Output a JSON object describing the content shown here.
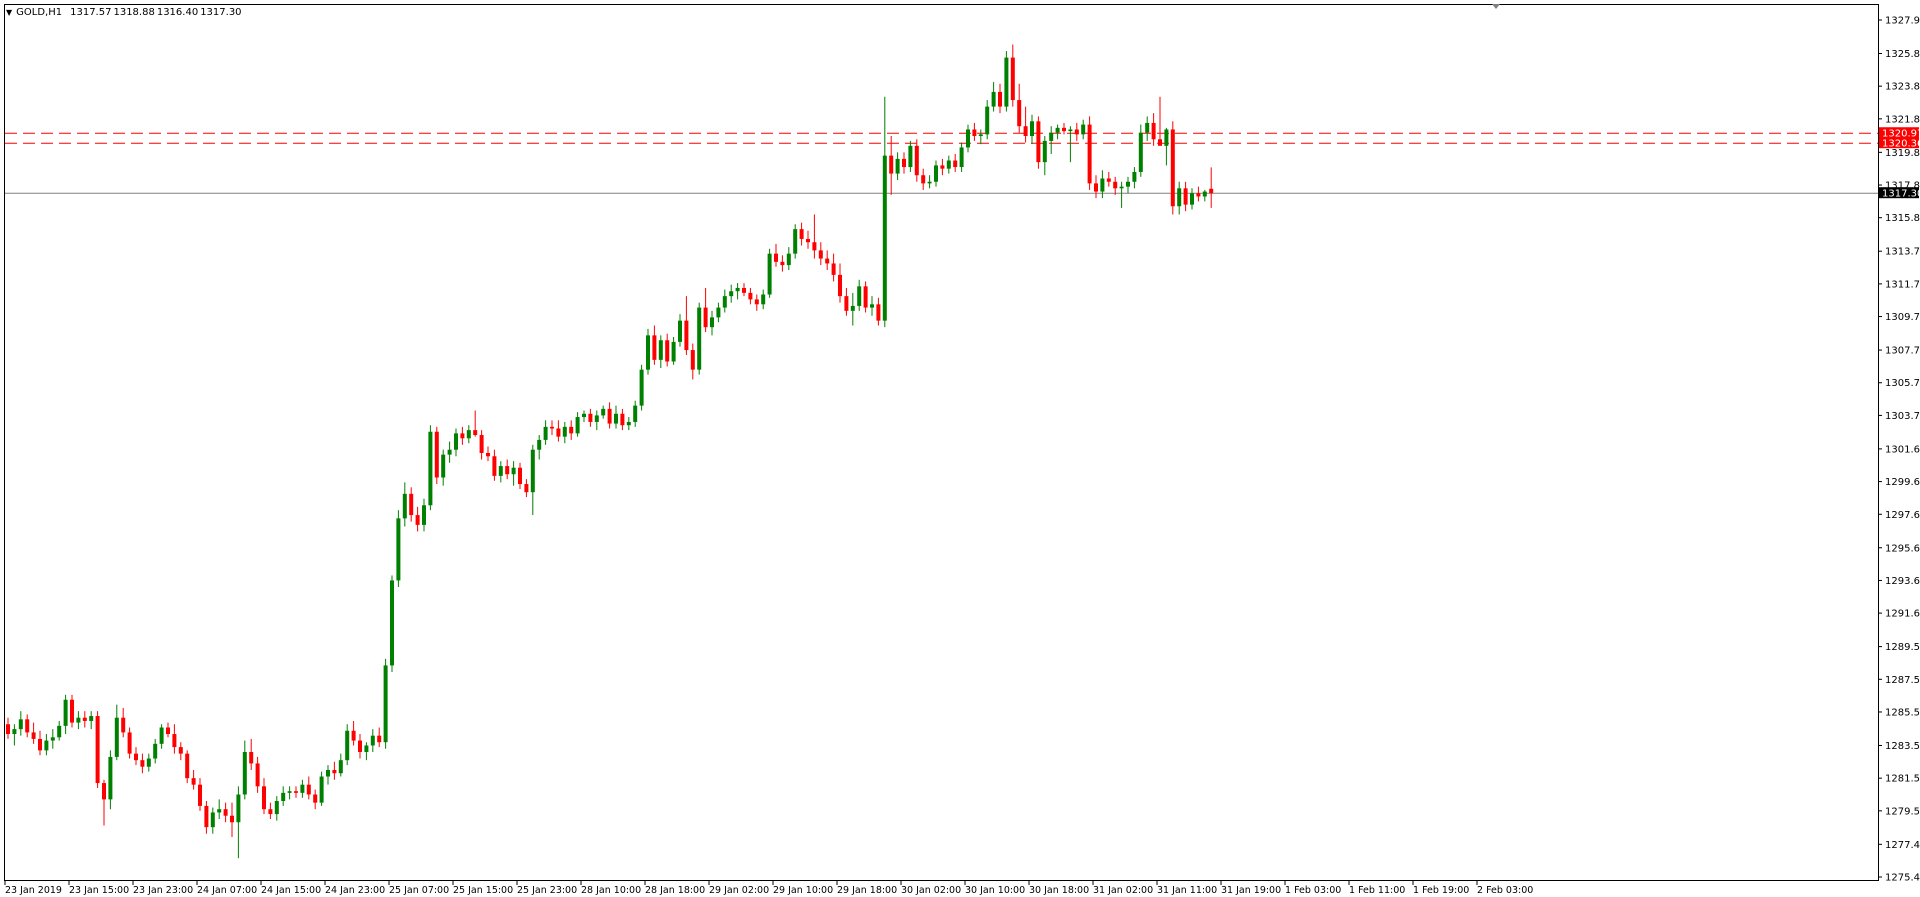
{
  "header": {
    "symbol": "GOLD,H1",
    "open": "1317.57",
    "high": "1318.88",
    "low": "1316.40",
    "close": "1317.30"
  },
  "colors": {
    "bull": "#008000",
    "bear": "#ff0000",
    "hline": "#ff0000",
    "price_line": "#808080",
    "price_tag_bg": "#000000",
    "hline_tag_bg": "#ff0000",
    "axis": "#000000"
  },
  "horizontal_lines": [
    {
      "price": 1320.97,
      "label": "1320.97"
    },
    {
      "price": 1320.36,
      "label": "1320.36"
    }
  ],
  "current_price": {
    "price": 1317.3,
    "label": "1317.30"
  },
  "chart_data": {
    "type": "candlestick",
    "ylim": [
      1275.45,
      1327.9
    ],
    "y_ticks": [
      "1327.90",
      "1325.85",
      "1323.85",
      "1321.85",
      "1319.80",
      "1317.80",
      "1315.80",
      "1313.75",
      "1311.75",
      "1309.75",
      "1307.70",
      "1305.70",
      "1303.70",
      "1301.65",
      "1299.65",
      "1297.65",
      "1295.60",
      "1293.60",
      "1291.60",
      "1289.55",
      "1287.55",
      "1285.55",
      "1283.50",
      "1281.50",
      "1279.50",
      "1277.45",
      "1275.45"
    ],
    "x_ticks": [
      "23 Jan 2019",
      "23 Jan 15:00",
      "23 Jan 23:00",
      "24 Jan 07:00",
      "24 Jan 15:00",
      "24 Jan 23:00",
      "25 Jan 07:00",
      "25 Jan 15:00",
      "25 Jan 23:00",
      "28 Jan 10:00",
      "28 Jan 18:00",
      "29 Jan 02:00",
      "29 Jan 10:00",
      "29 Jan 18:00",
      "30 Jan 02:00",
      "30 Jan 10:00",
      "30 Jan 18:00",
      "31 Jan 02:00",
      "31 Jan 11:00",
      "31 Jan 19:00",
      "1 Feb 03:00",
      "1 Feb 11:00",
      "1 Feb 19:00",
      "2 Feb 03:00"
    ],
    "ohlc": [
      [
        1284.8,
        1285.2,
        1283.9,
        1284.2
      ],
      [
        1284.2,
        1284.8,
        1283.5,
        1284.5
      ],
      [
        1284.5,
        1285.6,
        1284.1,
        1285.1
      ],
      [
        1285.1,
        1285.4,
        1284.0,
        1284.3
      ],
      [
        1284.3,
        1284.9,
        1283.6,
        1283.9
      ],
      [
        1283.9,
        1284.4,
        1282.9,
        1283.2
      ],
      [
        1283.2,
        1284.2,
        1282.9,
        1283.8
      ],
      [
        1283.8,
        1284.5,
        1283.3,
        1284.0
      ],
      [
        1284.0,
        1285.0,
        1283.8,
        1284.7
      ],
      [
        1284.7,
        1286.6,
        1284.2,
        1286.3
      ],
      [
        1286.3,
        1286.6,
        1284.6,
        1284.9
      ],
      [
        1284.9,
        1285.6,
        1284.5,
        1285.2
      ],
      [
        1285.2,
        1285.6,
        1284.6,
        1285.0
      ],
      [
        1285.0,
        1285.6,
        1284.5,
        1285.3
      ],
      [
        1285.3,
        1285.6,
        1280.9,
        1281.2
      ],
      [
        1281.2,
        1281.4,
        1278.6,
        1280.2
      ],
      [
        1280.2,
        1283.2,
        1279.6,
        1282.8
      ],
      [
        1282.8,
        1286.0,
        1282.6,
        1285.2
      ],
      [
        1285.2,
        1285.8,
        1284.0,
        1284.3
      ],
      [
        1284.3,
        1284.6,
        1282.7,
        1283.0
      ],
      [
        1283.0,
        1283.4,
        1282.3,
        1282.6
      ],
      [
        1282.6,
        1283.0,
        1281.8,
        1282.2
      ],
      [
        1282.2,
        1283.0,
        1281.9,
        1282.7
      ],
      [
        1282.7,
        1283.9,
        1282.4,
        1283.6
      ],
      [
        1283.6,
        1284.8,
        1283.3,
        1284.6
      ],
      [
        1284.6,
        1284.9,
        1284.0,
        1284.2
      ],
      [
        1284.2,
        1284.8,
        1283.0,
        1283.4
      ],
      [
        1283.4,
        1283.7,
        1282.6,
        1283.0
      ],
      [
        1283.0,
        1283.2,
        1281.2,
        1281.5
      ],
      [
        1281.5,
        1282.0,
        1280.8,
        1281.1
      ],
      [
        1281.1,
        1281.5,
        1279.5,
        1279.8
      ],
      [
        1279.8,
        1280.1,
        1278.1,
        1278.5
      ],
      [
        1278.5,
        1279.7,
        1278.1,
        1279.4
      ],
      [
        1279.4,
        1280.2,
        1279.0,
        1279.6
      ],
      [
        1279.6,
        1280.0,
        1278.8,
        1279.2
      ],
      [
        1279.2,
        1280.0,
        1277.9,
        1278.8
      ],
      [
        1278.8,
        1281.0,
        1276.6,
        1280.5
      ],
      [
        1280.5,
        1283.8,
        1280.2,
        1283.1
      ],
      [
        1283.1,
        1283.9,
        1282.0,
        1282.4
      ],
      [
        1282.4,
        1282.8,
        1280.6,
        1281.0
      ],
      [
        1281.0,
        1281.5,
        1279.3,
        1279.6
      ],
      [
        1279.6,
        1280.0,
        1279.0,
        1279.3
      ],
      [
        1279.3,
        1280.4,
        1278.9,
        1280.1
      ],
      [
        1280.1,
        1281.0,
        1279.8,
        1280.6
      ],
      [
        1280.6,
        1281.0,
        1280.2,
        1280.7
      ],
      [
        1280.7,
        1281.0,
        1280.3,
        1280.6
      ],
      [
        1280.6,
        1281.4,
        1280.3,
        1281.1
      ],
      [
        1281.1,
        1281.6,
        1280.2,
        1280.5
      ],
      [
        1280.5,
        1280.8,
        1279.6,
        1280.0
      ],
      [
        1280.0,
        1281.9,
        1279.8,
        1281.6
      ],
      [
        1281.6,
        1282.3,
        1281.1,
        1282.0
      ],
      [
        1282.0,
        1282.5,
        1281.4,
        1281.8
      ],
      [
        1281.8,
        1283.0,
        1281.6,
        1282.6
      ],
      [
        1282.6,
        1284.8,
        1282.3,
        1284.4
      ],
      [
        1284.4,
        1285.0,
        1283.5,
        1283.8
      ],
      [
        1283.8,
        1284.2,
        1282.7,
        1283.1
      ],
      [
        1283.1,
        1283.7,
        1282.6,
        1283.5
      ],
      [
        1283.5,
        1284.5,
        1283.1,
        1284.1
      ],
      [
        1284.1,
        1284.6,
        1283.4,
        1283.7
      ],
      [
        1283.7,
        1288.8,
        1283.3,
        1288.4
      ],
      [
        1288.4,
        1293.9,
        1288.0,
        1293.6
      ],
      [
        1293.6,
        1297.9,
        1293.2,
        1297.4
      ],
      [
        1297.4,
        1299.6,
        1296.9,
        1298.9
      ],
      [
        1298.9,
        1299.3,
        1297.2,
        1297.6
      ],
      [
        1297.6,
        1298.1,
        1296.6,
        1297.0
      ],
      [
        1297.0,
        1298.6,
        1296.6,
        1298.2
      ],
      [
        1298.2,
        1303.1,
        1297.9,
        1302.7
      ],
      [
        1302.7,
        1303.0,
        1299.5,
        1299.9
      ],
      [
        1299.9,
        1301.6,
        1299.4,
        1301.3
      ],
      [
        1301.3,
        1302.1,
        1300.8,
        1301.6
      ],
      [
        1301.6,
        1302.9,
        1301.2,
        1302.6
      ],
      [
        1302.6,
        1303.0,
        1301.9,
        1302.3
      ],
      [
        1302.3,
        1303.1,
        1302.0,
        1302.8
      ],
      [
        1302.8,
        1304.0,
        1302.4,
        1302.5
      ],
      [
        1302.5,
        1302.8,
        1301.0,
        1301.4
      ],
      [
        1301.4,
        1301.8,
        1300.9,
        1301.2
      ],
      [
        1301.2,
        1301.6,
        1299.7,
        1300.0
      ],
      [
        1300.0,
        1300.9,
        1299.6,
        1300.6
      ],
      [
        1300.6,
        1301.0,
        1299.8,
        1300.1
      ],
      [
        1300.1,
        1300.9,
        1299.4,
        1300.5
      ],
      [
        1300.5,
        1300.8,
        1299.2,
        1299.5
      ],
      [
        1299.5,
        1299.8,
        1298.7,
        1299.0
      ],
      [
        1299.0,
        1301.9,
        1297.6,
        1301.6
      ],
      [
        1301.6,
        1302.5,
        1301.0,
        1302.2
      ],
      [
        1302.2,
        1303.4,
        1301.9,
        1303.0
      ],
      [
        1303.0,
        1303.4,
        1302.5,
        1302.9
      ],
      [
        1302.9,
        1303.4,
        1302.1,
        1302.4
      ],
      [
        1302.4,
        1303.3,
        1302.0,
        1303.0
      ],
      [
        1303.0,
        1303.4,
        1302.2,
        1302.6
      ],
      [
        1302.6,
        1303.9,
        1302.4,
        1303.6
      ],
      [
        1303.6,
        1304.0,
        1303.3,
        1303.8
      ],
      [
        1303.8,
        1304.1,
        1303.0,
        1303.3
      ],
      [
        1303.3,
        1304.0,
        1302.8,
        1303.7
      ],
      [
        1303.7,
        1304.3,
        1303.5,
        1304.1
      ],
      [
        1304.1,
        1304.5,
        1302.9,
        1303.2
      ],
      [
        1303.2,
        1304.3,
        1302.9,
        1303.8
      ],
      [
        1303.8,
        1304.1,
        1302.8,
        1303.1
      ],
      [
        1303.1,
        1303.6,
        1302.8,
        1303.3
      ],
      [
        1303.3,
        1304.6,
        1303.0,
        1304.3
      ],
      [
        1304.3,
        1306.8,
        1304.0,
        1306.5
      ],
      [
        1306.5,
        1309.0,
        1306.2,
        1308.6
      ],
      [
        1308.6,
        1309.2,
        1306.8,
        1307.1
      ],
      [
        1307.1,
        1308.6,
        1306.6,
        1308.3
      ],
      [
        1308.3,
        1308.7,
        1306.7,
        1307.0
      ],
      [
        1307.0,
        1308.5,
        1306.8,
        1308.2
      ],
      [
        1308.2,
        1309.9,
        1307.9,
        1309.5
      ],
      [
        1309.5,
        1311.0,
        1307.4,
        1307.7
      ],
      [
        1307.7,
        1308.1,
        1305.9,
        1306.5
      ],
      [
        1306.5,
        1310.6,
        1306.2,
        1310.3
      ],
      [
        1310.3,
        1311.5,
        1308.8,
        1309.1
      ],
      [
        1309.1,
        1310.1,
        1308.6,
        1309.7
      ],
      [
        1309.7,
        1310.6,
        1309.4,
        1310.3
      ],
      [
        1310.3,
        1311.4,
        1310.0,
        1311.0
      ],
      [
        1311.0,
        1311.7,
        1310.6,
        1311.3
      ],
      [
        1311.3,
        1311.8,
        1310.8,
        1311.5
      ],
      [
        1311.5,
        1311.8,
        1311.0,
        1311.2
      ],
      [
        1311.2,
        1311.5,
        1310.5,
        1310.8
      ],
      [
        1310.8,
        1311.1,
        1310.1,
        1310.5
      ],
      [
        1310.5,
        1311.4,
        1310.2,
        1311.1
      ],
      [
        1311.1,
        1313.9,
        1310.9,
        1313.6
      ],
      [
        1313.6,
        1314.2,
        1312.8,
        1313.1
      ],
      [
        1313.1,
        1313.5,
        1312.5,
        1312.9
      ],
      [
        1312.9,
        1314.0,
        1312.6,
        1313.6
      ],
      [
        1313.6,
        1315.4,
        1313.3,
        1315.1
      ],
      [
        1315.1,
        1315.5,
        1314.1,
        1314.5
      ],
      [
        1314.5,
        1315.0,
        1313.9,
        1314.3
      ],
      [
        1314.3,
        1316.0,
        1313.3,
        1313.8
      ],
      [
        1313.8,
        1314.3,
        1312.9,
        1313.3
      ],
      [
        1313.3,
        1313.8,
        1312.6,
        1313.0
      ],
      [
        1313.0,
        1313.6,
        1311.9,
        1312.3
      ],
      [
        1312.3,
        1313.0,
        1310.6,
        1311.0
      ],
      [
        1311.0,
        1311.5,
        1309.8,
        1310.1
      ],
      [
        1310.1,
        1311.2,
        1309.2,
        1310.4
      ],
      [
        1310.4,
        1312.0,
        1310.1,
        1311.6
      ],
      [
        1311.6,
        1311.9,
        1310.0,
        1310.3
      ],
      [
        1310.3,
        1311.0,
        1309.8,
        1310.5
      ],
      [
        1310.5,
        1310.9,
        1309.2,
        1309.5
      ],
      [
        1309.5,
        1323.2,
        1309.1,
        1319.6
      ],
      [
        1319.6,
        1320.8,
        1317.2,
        1318.5
      ],
      [
        1318.5,
        1319.8,
        1318.1,
        1319.4
      ],
      [
        1319.4,
        1319.8,
        1318.5,
        1318.9
      ],
      [
        1318.9,
        1320.5,
        1318.6,
        1320.2
      ],
      [
        1320.2,
        1320.6,
        1318.0,
        1318.4
      ],
      [
        1318.4,
        1318.8,
        1317.5,
        1317.9
      ],
      [
        1317.9,
        1318.4,
        1317.6,
        1318.0
      ],
      [
        1318.0,
        1319.3,
        1317.7,
        1319.0
      ],
      [
        1319.0,
        1319.4,
        1318.4,
        1318.8
      ],
      [
        1318.8,
        1319.6,
        1318.5,
        1319.3
      ],
      [
        1319.3,
        1319.7,
        1318.6,
        1318.9
      ],
      [
        1318.9,
        1320.4,
        1318.6,
        1320.1
      ],
      [
        1320.1,
        1321.5,
        1319.8,
        1321.2
      ],
      [
        1321.2,
        1321.6,
        1320.5,
        1320.8
      ],
      [
        1320.8,
        1321.2,
        1320.3,
        1320.9
      ],
      [
        1320.9,
        1323.0,
        1320.6,
        1322.6
      ],
      [
        1322.6,
        1324.1,
        1322.3,
        1323.5
      ],
      [
        1323.5,
        1324.0,
        1322.2,
        1322.6
      ],
      [
        1322.6,
        1326.0,
        1322.3,
        1325.6
      ],
      [
        1325.6,
        1326.4,
        1322.6,
        1323.0
      ],
      [
        1323.0,
        1324.0,
        1321.0,
        1321.4
      ],
      [
        1321.4,
        1322.6,
        1320.4,
        1320.8
      ],
      [
        1320.8,
        1322.1,
        1320.3,
        1321.7
      ],
      [
        1321.7,
        1322.0,
        1318.8,
        1319.2
      ],
      [
        1319.2,
        1320.8,
        1318.4,
        1320.5
      ],
      [
        1320.5,
        1321.4,
        1319.7,
        1321.0
      ],
      [
        1321.0,
        1321.5,
        1320.6,
        1321.3
      ],
      [
        1321.3,
        1321.6,
        1320.9,
        1321.1
      ],
      [
        1321.1,
        1321.4,
        1319.2,
        1321.2
      ],
      [
        1321.2,
        1321.6,
        1320.5,
        1320.9
      ],
      [
        1320.9,
        1321.8,
        1320.6,
        1321.5
      ],
      [
        1321.5,
        1322.0,
        1317.5,
        1317.9
      ],
      [
        1317.9,
        1318.4,
        1317.0,
        1317.4
      ],
      [
        1317.4,
        1318.7,
        1317.0,
        1318.2
      ],
      [
        1318.2,
        1318.6,
        1317.7,
        1318.0
      ],
      [
        1318.0,
        1318.3,
        1317.2,
        1317.6
      ],
      [
        1317.6,
        1318.0,
        1316.4,
        1317.7
      ],
      [
        1317.7,
        1318.3,
        1317.3,
        1318.0
      ],
      [
        1318.0,
        1318.9,
        1317.6,
        1318.6
      ],
      [
        1318.6,
        1321.5,
        1318.3,
        1321.0
      ],
      [
        1321.0,
        1322.0,
        1320.5,
        1321.6
      ],
      [
        1321.6,
        1322.2,
        1320.2,
        1320.6
      ],
      [
        1320.6,
        1323.2,
        1320.3,
        1320.2
      ],
      [
        1320.2,
        1321.3,
        1319.0,
        1321.2
      ],
      [
        1321.2,
        1321.7,
        1316.0,
        1316.5
      ],
      [
        1316.5,
        1318.0,
        1316.0,
        1317.6
      ],
      [
        1317.6,
        1318.0,
        1316.2,
        1316.6
      ],
      [
        1316.6,
        1317.6,
        1316.3,
        1317.3
      ],
      [
        1317.3,
        1317.7,
        1316.8,
        1317.1
      ],
      [
        1317.1,
        1317.5,
        1316.8,
        1317.4
      ],
      [
        1317.57,
        1318.88,
        1316.4,
        1317.3
      ]
    ]
  }
}
